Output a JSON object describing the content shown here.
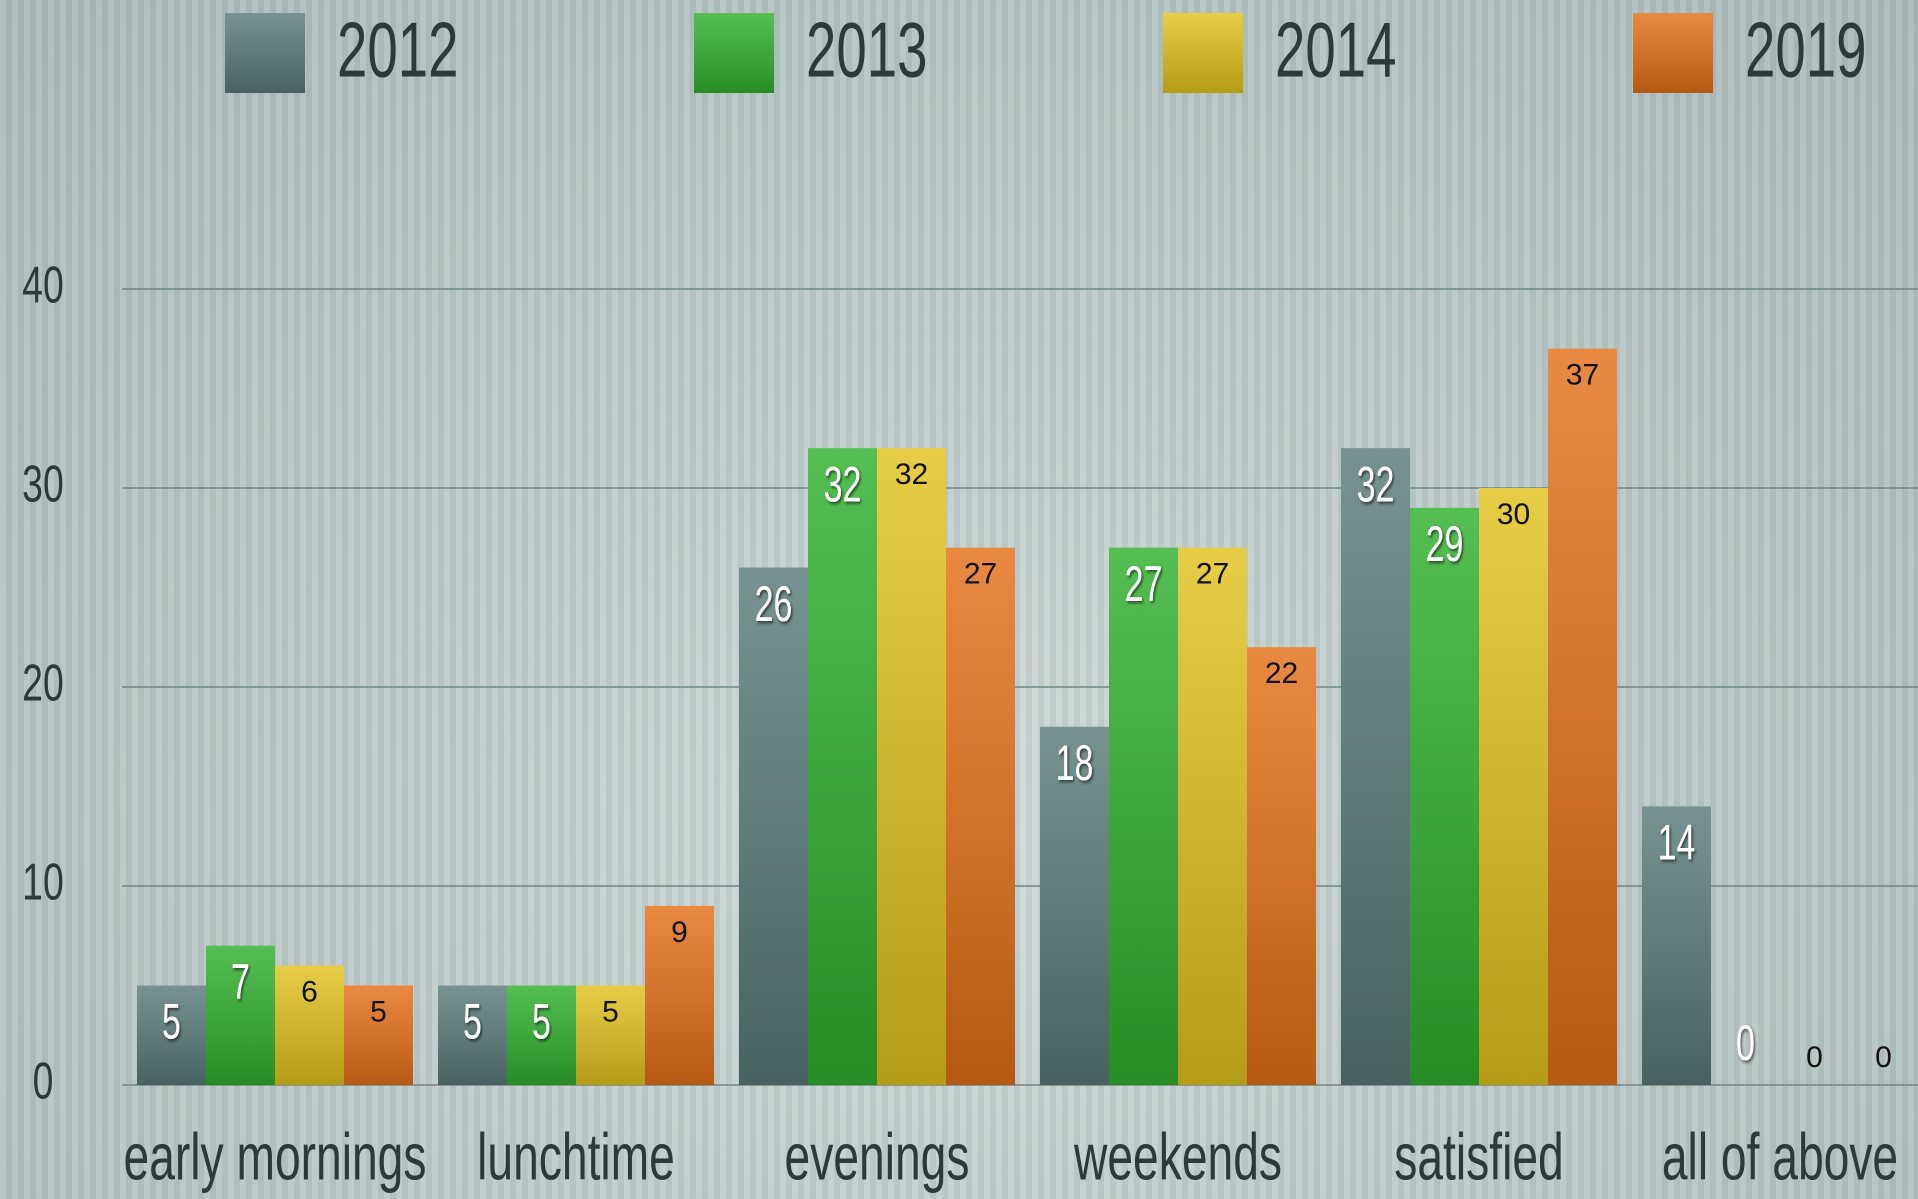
{
  "chart_data": {
    "type": "bar",
    "categories": [
      "early mornings",
      "lunchtime",
      "evenings",
      "weekends",
      "satisfied",
      "all of above"
    ],
    "series": [
      {
        "name": "2012",
        "color": "#587a79",
        "values": [
          5,
          5,
          26,
          18,
          32,
          14
        ]
      },
      {
        "name": "2013",
        "color": "#2fb02c",
        "values": [
          7,
          5,
          32,
          27,
          29,
          0
        ]
      },
      {
        "name": "2014",
        "color": "#e2c21c",
        "values": [
          6,
          5,
          32,
          27,
          30,
          0
        ]
      },
      {
        "name": "2019",
        "color": "#e56f17",
        "values": [
          5,
          9,
          27,
          22,
          37,
          0
        ]
      }
    ],
    "ylim": [
      0,
      40
    ],
    "yticks": [
      0,
      10,
      20,
      30,
      40
    ],
    "grid": true,
    "legend": "top"
  }
}
